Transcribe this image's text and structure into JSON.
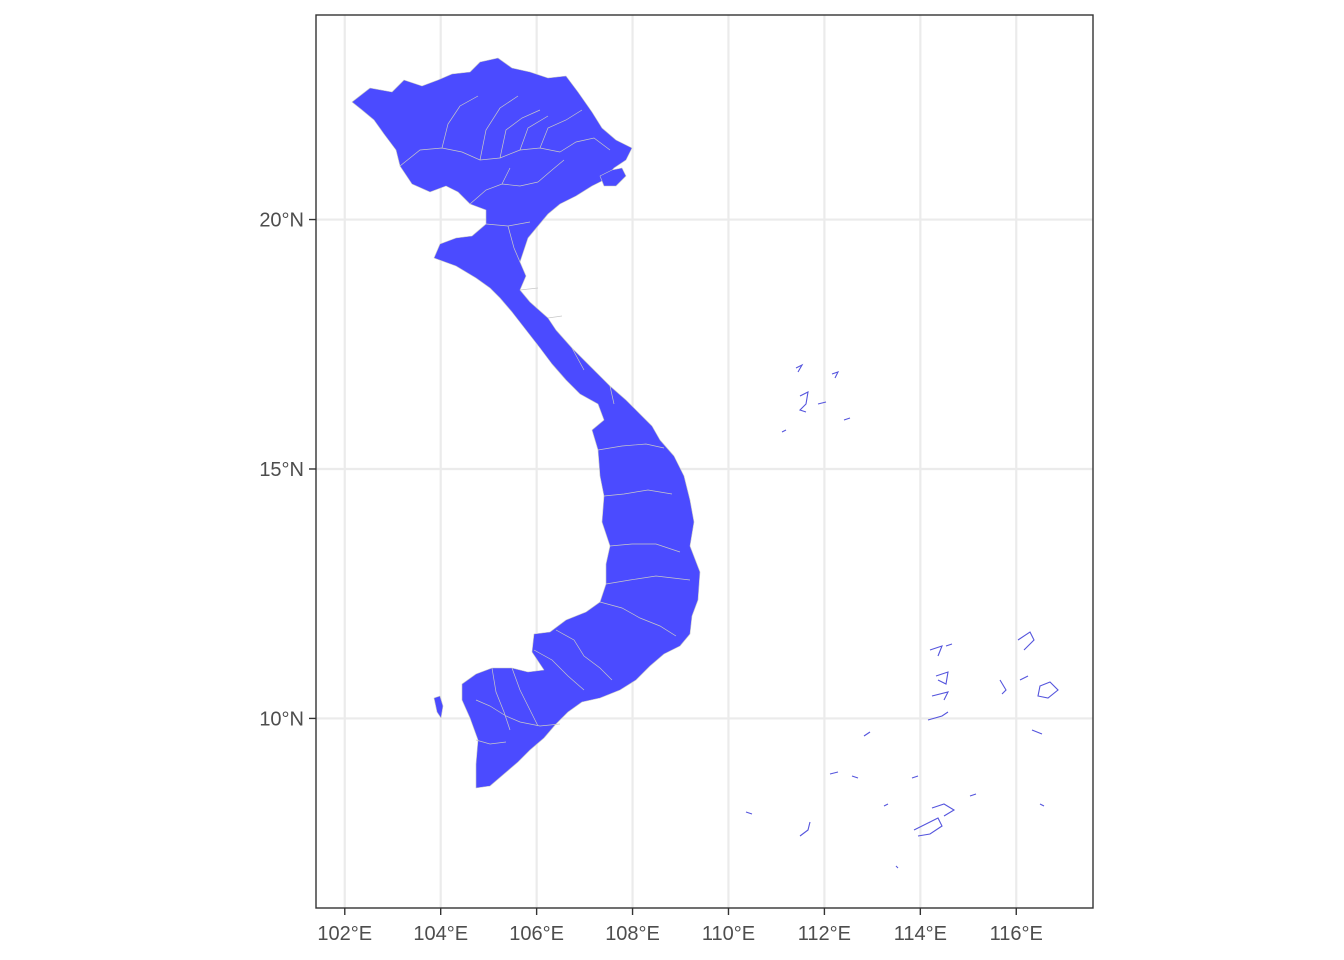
{
  "map": {
    "type": "choropleth-map",
    "fill_color": "#4b4bff",
    "border_color": "#c8c8c8",
    "islet_outline_color": "#5555dd",
    "x_axis": {
      "ticks": [
        {
          "value": 102,
          "label": "102°E"
        },
        {
          "value": 104,
          "label": "104°E"
        },
        {
          "value": 106,
          "label": "106°E"
        },
        {
          "value": 108,
          "label": "108°E"
        },
        {
          "value": 110,
          "label": "110°E"
        },
        {
          "value": 112,
          "label": "112°E"
        },
        {
          "value": 114,
          "label": "114°E"
        },
        {
          "value": 116,
          "label": "116°E"
        }
      ],
      "range": [
        101.4,
        117.6
      ]
    },
    "y_axis": {
      "ticks": [
        {
          "value": 10,
          "label": "10°N"
        },
        {
          "value": 15,
          "label": "15°N"
        },
        {
          "value": 20,
          "label": "20°N"
        }
      ],
      "range": [
        6.2,
        24.1
      ]
    },
    "grid": true,
    "legend": "none"
  }
}
